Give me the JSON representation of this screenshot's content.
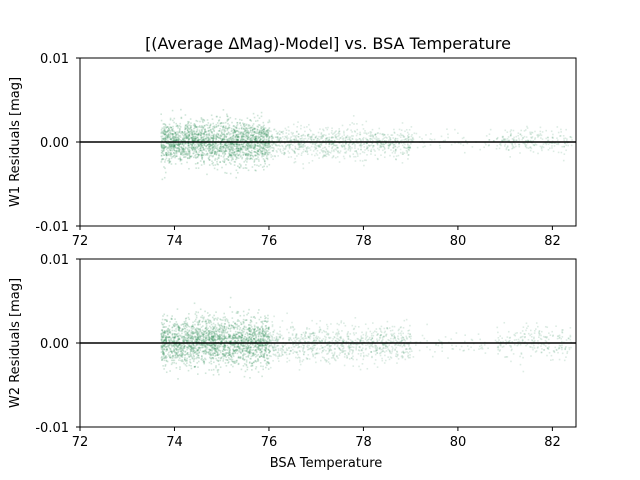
{
  "chart_data": {
    "type": "scatter",
    "title": "[(Average ΔMag)-Model] vs. BSA Temperature",
    "xlabel": "BSA Temperature",
    "xlim": [
      72,
      82.5
    ],
    "x_ticks": [
      "72",
      "74",
      "76",
      "78",
      "80",
      "82"
    ],
    "point_color": "#2e8b57",
    "reference_line": {
      "y": 0.0,
      "color": "#000000"
    },
    "panels": [
      {
        "name": "W1",
        "ylabel": "W1 Residuals [mag]",
        "ylim": [
          -0.01,
          0.01
        ],
        "y_ticks": [
          "0.01",
          "0.00",
          "-0.01"
        ],
        "clusters": [
          {
            "x_range": [
              73.7,
              76.0
            ],
            "y_center": 0.0,
            "y_spread": 0.0025,
            "density": "very high"
          },
          {
            "x_range": [
              76.0,
              79.0
            ],
            "y_center": 0.0,
            "y_spread": 0.0018,
            "density": "medium"
          },
          {
            "x_range": [
              79.0,
              80.8
            ],
            "y_center": 0.0003,
            "y_spread": 0.0012,
            "density": "very low"
          },
          {
            "x_range": [
              80.8,
              82.4
            ],
            "y_center": 0.0002,
            "y_spread": 0.0015,
            "density": "low"
          }
        ]
      },
      {
        "name": "W2",
        "ylabel": "W2 Residuals [mag]",
        "ylim": [
          -0.01,
          0.01
        ],
        "y_ticks": [
          "0.01",
          "0.00",
          "-0.01"
        ],
        "clusters": [
          {
            "x_range": [
              73.7,
              76.0
            ],
            "y_center": 0.0002,
            "y_spread": 0.0028,
            "density": "very high"
          },
          {
            "x_range": [
              76.0,
              79.0
            ],
            "y_center": 0.0,
            "y_spread": 0.0022,
            "density": "medium"
          },
          {
            "x_range": [
              79.0,
              80.8
            ],
            "y_center": -0.0002,
            "y_spread": 0.0014,
            "density": "very low"
          },
          {
            "x_range": [
              80.8,
              82.4
            ],
            "y_center": 0.0001,
            "y_spread": 0.002,
            "density": "low"
          }
        ]
      }
    ]
  }
}
